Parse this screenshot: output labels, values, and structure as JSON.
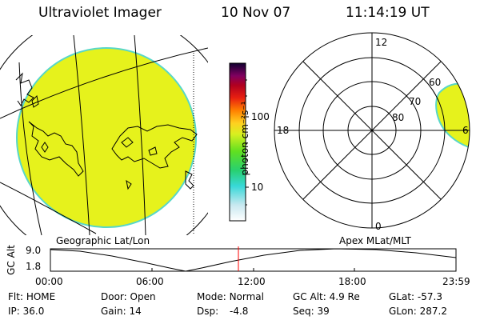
{
  "header": {
    "title": "Ultraviolet Imager",
    "date": "10 Nov 07",
    "time": "11:14:19 UT"
  },
  "colorbar": {
    "unit_label": "photon cm⁻²s⁻¹",
    "ticks": [
      "100",
      "10"
    ]
  },
  "polar": {
    "clock_labels": {
      "top": "12",
      "left": "18",
      "right": "6",
      "bottom": "0"
    },
    "lat_labels": [
      "60",
      "70",
      "80"
    ]
  },
  "map_labels": {
    "left": "Geographic Lat/Lon",
    "right": "Apex MLat/MLT"
  },
  "altitude": {
    "axis_label": "GC Alt",
    "y_ticks": [
      "9.0",
      "1.8"
    ],
    "x_ticks": [
      "00:00",
      "06:00",
      "12:00",
      "18:00",
      "23:59"
    ],
    "current_time_marker": "11:14"
  },
  "status": {
    "row1": [
      {
        "label": "Flt:",
        "value": "HOME"
      },
      {
        "label": "Door:",
        "value": "Open"
      },
      {
        "label": "Mode:",
        "value": "Normal"
      },
      {
        "label": "GC Alt:",
        "value": "4.9 Re"
      },
      {
        "label": "GLat:",
        "value": "-57.3"
      }
    ],
    "row2": [
      {
        "label": "IP:",
        "value": "36.0"
      },
      {
        "label": "Gain:",
        "value": "14"
      },
      {
        "label": "Dsp:",
        "value": "-4.8"
      },
      {
        "label": "Seq:",
        "value": "39"
      },
      {
        "label": "GLon:",
        "value": "287.2"
      }
    ]
  },
  "colors": {
    "image_fill": "#e6f21c",
    "image_edge": "#58d7c8",
    "marker": "#ff0000"
  }
}
